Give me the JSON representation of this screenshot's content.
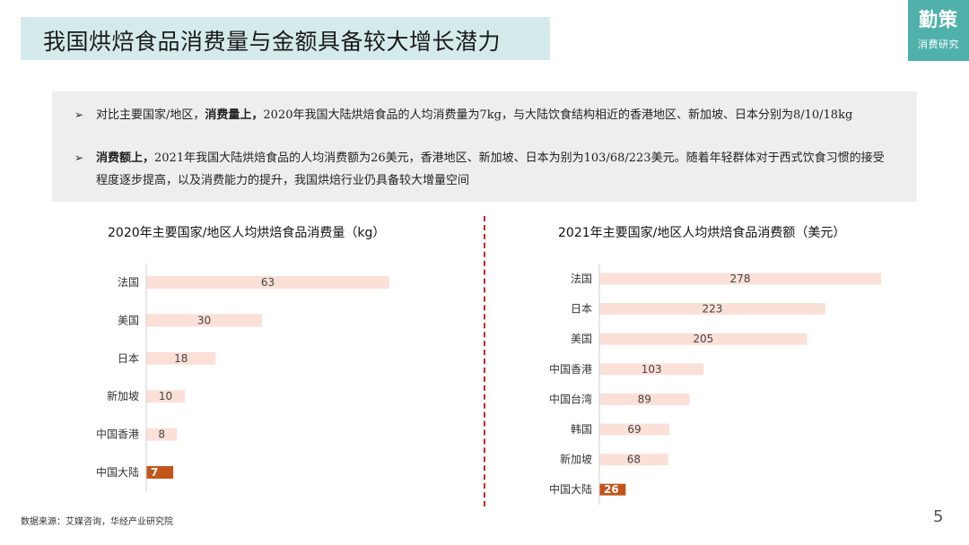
{
  "header": {
    "title": "我国烘焙食品消费量与金额具备较大增长潜力",
    "logo_main": "勤策",
    "logo_sub": "消费研究"
  },
  "summary": {
    "bullets": [
      {
        "marker": "➢",
        "pre": "对比主要国家/地区，",
        "bold": "消费量上，",
        "post": "2020年我国大陆烘焙食品的人均消费量为7kg，与大陆饮食结构相近的香港地区、新加坡、日本分别为8/10/18kg"
      },
      {
        "marker": "➢",
        "pre": "",
        "bold": "消费额上，",
        "post": "2021年我国大陆烘焙食品的人均消费额为26美元，香港地区、新加坡、日本为别为103/68/223美元。随着年轻群体对于西式饮食习惯的接受程度逐步提高，以及消费能力的提升，我国烘焙行业仍具备较大增量空间"
      }
    ]
  },
  "colors": {
    "bar": "#fbe0d8",
    "highlight": "#c2561a",
    "title_bg": "#d5ebeb",
    "logo_bg": "#4fb1aa",
    "divider": "#c0282a",
    "summary_bg": "#eeeeee"
  },
  "chart_data": [
    {
      "type": "bar",
      "orientation": "horizontal",
      "title": "2020年主要国家/地区人均烘焙食品消费量（kg）",
      "categories": [
        "法国",
        "美国",
        "日本",
        "新加坡",
        "中国香港",
        "中国大陆"
      ],
      "values": [
        63,
        30,
        18,
        10,
        8,
        7
      ],
      "highlight": "中国大陆",
      "xlim": [
        0,
        63
      ],
      "grid": false,
      "legend": "none"
    },
    {
      "type": "bar",
      "orientation": "horizontal",
      "title": "2021年主要国家/地区人均烘焙食品消费额（美元）",
      "categories": [
        "法国",
        "日本",
        "美国",
        "中国香港",
        "中国台湾",
        "韩国",
        "新加坡",
        "中国大陆"
      ],
      "values": [
        278,
        223,
        205,
        103,
        89,
        69,
        68,
        26
      ],
      "highlight": "中国大陆",
      "xlim": [
        0,
        278
      ],
      "grid": false,
      "legend": "none"
    }
  ],
  "footer": {
    "source": "数据来源：艾媒咨询，华经产业研究院",
    "page": "5"
  }
}
